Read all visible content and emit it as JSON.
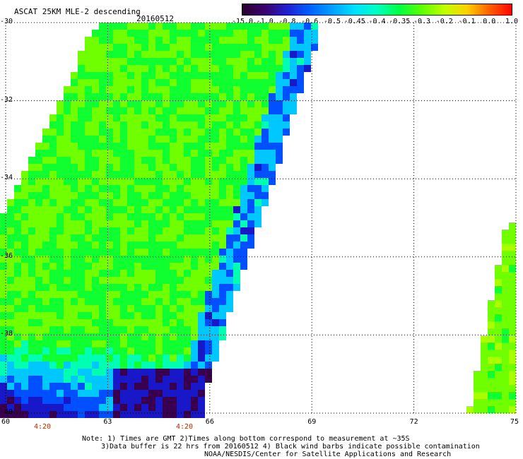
{
  "header": {
    "title": "ASCAT 25KM MLE-2 descending",
    "date": "20160512"
  },
  "colorbar": {
    "labels": [
      "-15.0",
      "-1.0",
      "-0.8",
      "-0.6",
      "-0.5",
      "-0.45",
      "-0.4",
      "-0.35",
      "-0.3",
      "-0.2",
      "-0.1",
      "0.0",
      "1.0"
    ],
    "colors": [
      "#2a0030",
      "#3a006e",
      "#2020d0",
      "#0060ff",
      "#00a0ff",
      "#00e0ff",
      "#00ffc0",
      "#00ff40",
      "#60ff00",
      "#c0ff00",
      "#ffd000",
      "#ff6000",
      "#ff0000"
    ]
  },
  "map": {
    "lon_range": [
      60,
      75
    ],
    "lat_range": [
      -40,
      -30
    ],
    "lat_ticks": [
      "-30",
      "-32",
      "-34",
      "-36",
      "-38",
      "-40"
    ],
    "lon_ticks": [
      "60",
      "63",
      "66",
      "69",
      "72",
      "75"
    ],
    "time_labels": [
      "4:20",
      "4:20"
    ]
  },
  "notes": [
    "Note: 1) Times are GMT 2)Times along bottom correspond to measurement at ~35S",
    "3)Data buffer is 22 hrs from 20160512 4) Black wind barbs indicate possible contamination",
    "NOAA/NESDIS/Center for Satellite Applications and Research"
  ]
}
